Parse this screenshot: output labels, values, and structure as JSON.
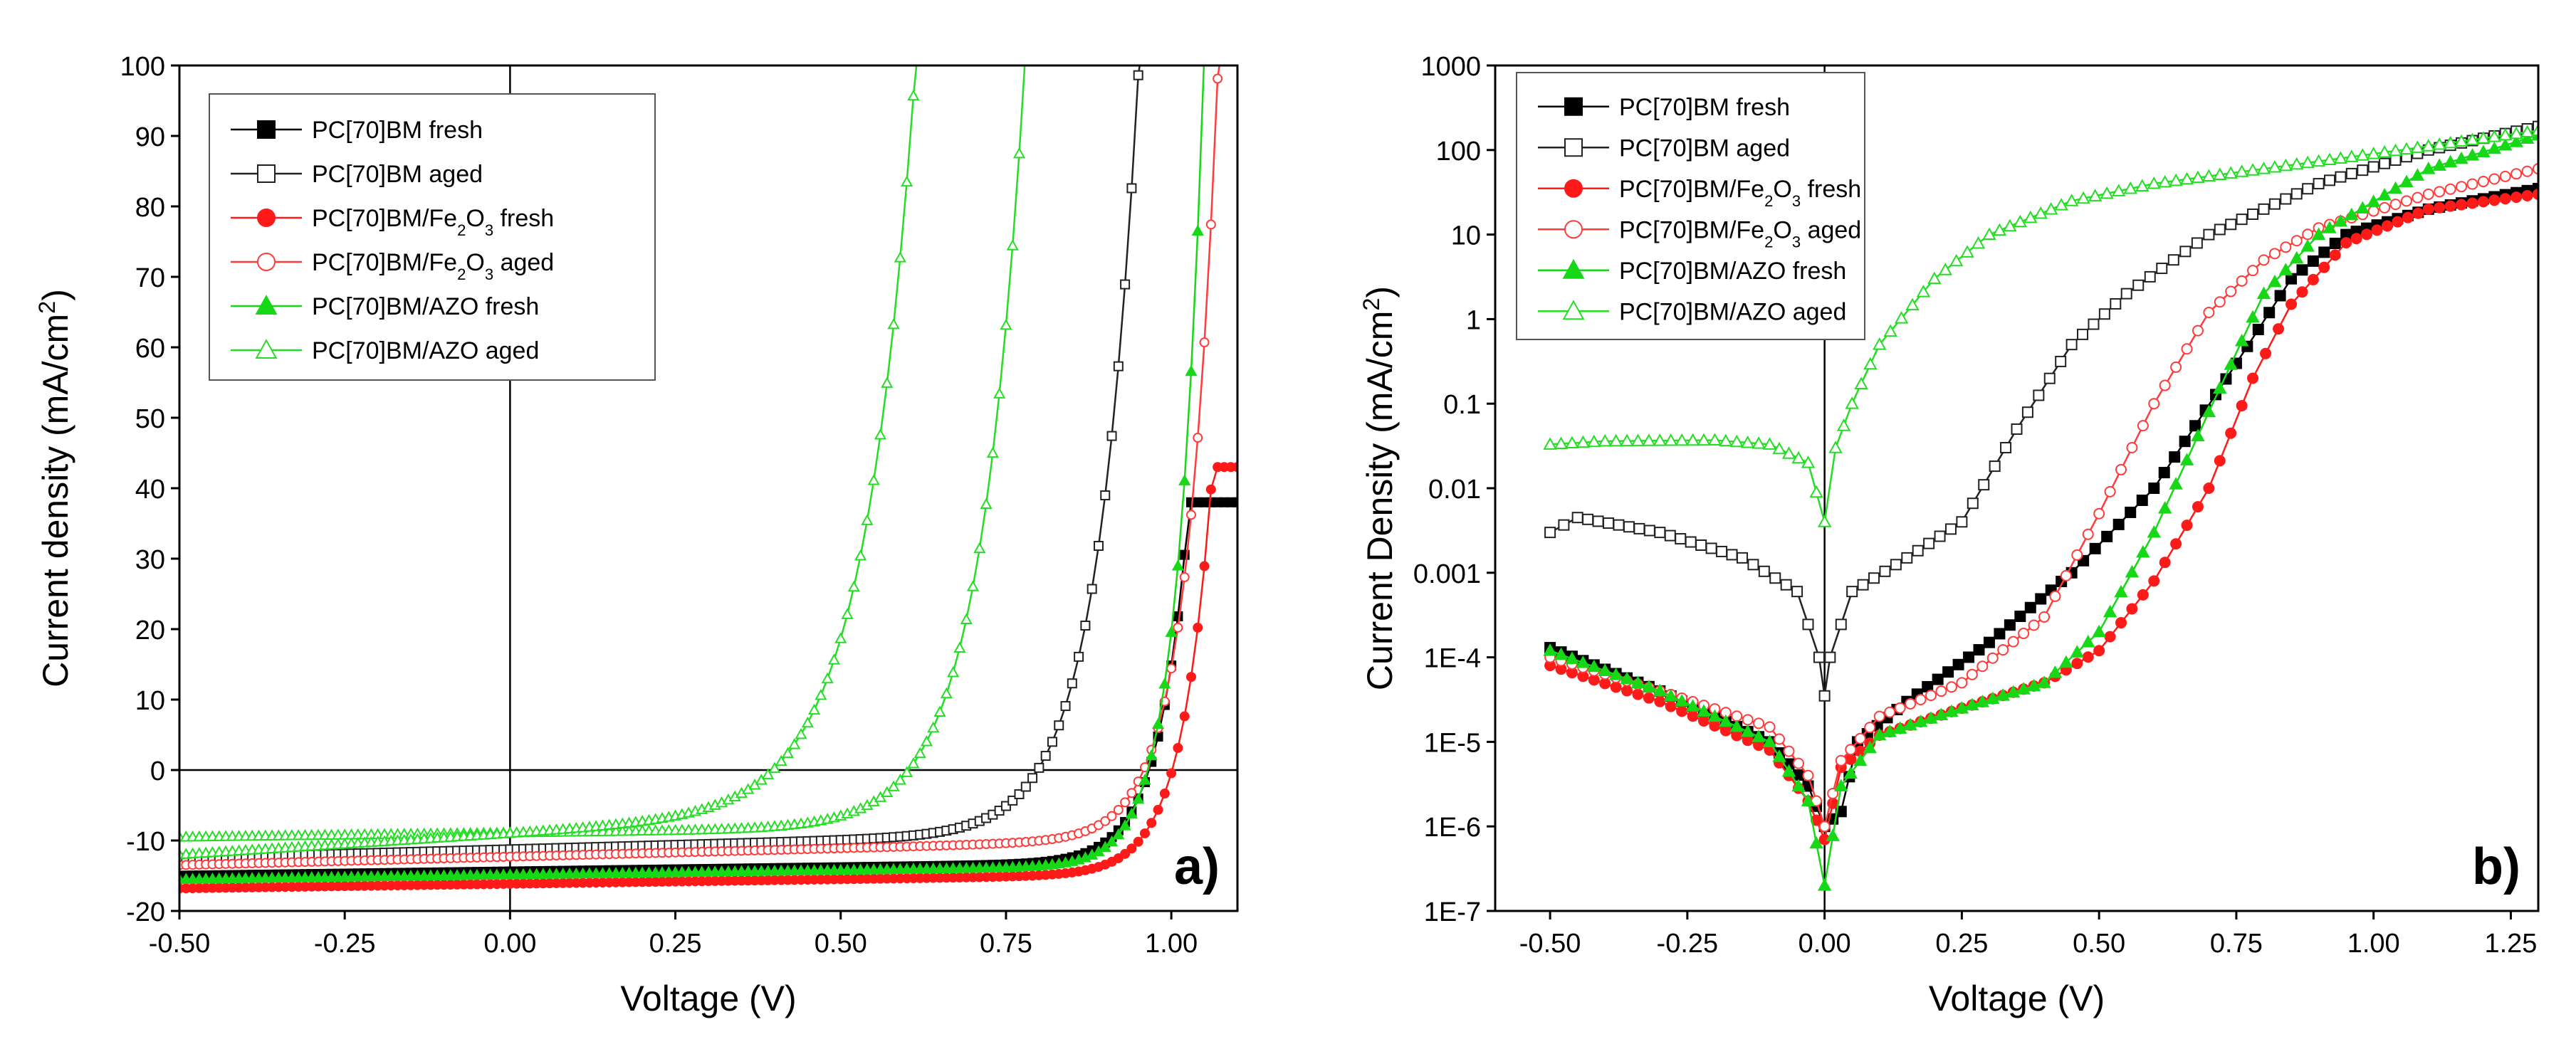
{
  "chart_data": [
    {
      "type": "line",
      "panel_label": "a)",
      "title": "",
      "xlabel": "Voltage (V)",
      "ylabel": "Current density (mA/cm²)",
      "ylabel_parts": [
        "Current density (mA/cm",
        "2",
        ")"
      ],
      "xlim": [
        -0.5,
        1.1
      ],
      "ylim": [
        -20,
        100
      ],
      "yscale": "linear",
      "xticks": [
        -0.5,
        -0.25,
        0.0,
        0.25,
        0.5,
        0.75,
        1.0
      ],
      "xtick_labels": [
        "-0.50",
        "-0.25",
        "0.00",
        "0.25",
        "0.50",
        "0.75",
        "1.00"
      ],
      "yticks": [
        -20,
        -10,
        0,
        10,
        20,
        30,
        40,
        50,
        60,
        70,
        80,
        90,
        100
      ],
      "ytick_labels": [
        "-20",
        "-10",
        "0",
        "10",
        "20",
        "30",
        "40",
        "50",
        "60",
        "70",
        "80",
        "90",
        "100"
      ],
      "legend_position": "top-left",
      "series": [
        {
          "name": "PC[70]BM fresh",
          "legend_parts": [
            [
              "PC[70]BM fresh",
              ""
            ]
          ],
          "color": "#000000",
          "marker": "square",
          "filled": true,
          "model": {
            "kind": "jv",
            "jsc": -15,
            "slope": 1.2,
            "voc": 0.85,
            "a": 0.045,
            "jmax": 38
          }
        },
        {
          "name": "PC[70]BM aged",
          "legend_parts": [
            [
              "PC[70]BM aged",
              ""
            ]
          ],
          "color": "#222222",
          "marker": "square",
          "filled": false,
          "model": {
            "kind": "jv",
            "jsc": -12.5,
            "slope": 2.5,
            "voc": 0.66,
            "a": 0.062,
            "jmax": 100
          }
        },
        {
          "name": "PC[70]BM/Fe2O3 fresh",
          "legend_parts": [
            [
              "PC[70]BM/Fe",
              ""
            ],
            [
              "2",
              "sub"
            ],
            [
              "O",
              ""
            ],
            [
              "3",
              "sub"
            ],
            [
              " fresh",
              ""
            ]
          ],
          "color": "#ff1a1a",
          "marker": "circle",
          "filled": true,
          "model": {
            "kind": "jv",
            "jsc": -16.8,
            "slope": 1.3,
            "voc": 0.88,
            "a": 0.045,
            "jmax": 43
          }
        },
        {
          "name": "PC[70]BM/Fe2O3 aged",
          "legend_parts": [
            [
              "PC[70]BM/Fe",
              ""
            ],
            [
              "2",
              "sub"
            ],
            [
              "O",
              ""
            ],
            [
              "3",
              "sub"
            ],
            [
              " aged",
              ""
            ]
          ],
          "color": "#ff3b3b",
          "marker": "circle",
          "filled": false,
          "model": {
            "kind": "jv",
            "jsc": -13.5,
            "slope": 2.4,
            "voc": 0.85,
            "a": 0.047,
            "jmax": 100
          }
        },
        {
          "name": "PC[70]BM/AZO fresh",
          "legend_parts": [
            [
              "PC[70]BM/AZO fresh",
              ""
            ]
          ],
          "color": "#16d816",
          "marker": "triangle",
          "filled": true,
          "model": {
            "kind": "jv",
            "jsc": -15.5,
            "slope": 1.3,
            "voc": 0.86,
            "a": 0.04,
            "jmax": 100
          }
        },
        {
          "name": "PC[70]BM/AZO aged",
          "legend_parts": [
            [
              "PC[70]BM/AZO aged",
              ""
            ]
          ],
          "color": "#25dd25",
          "marker": "triangle",
          "filled": false,
          "model": {
            "kind": "jv",
            "jsc": -9.5,
            "slope": 1.2,
            "voc": 0.46,
            "a": 0.068,
            "jmax": 100
          }
        },
        {
          "name": "PC[70]BM/AZO aged (second curve)",
          "legend_parts": [],
          "color": "#25dd25",
          "marker": "triangle",
          "filled": false,
          "model": {
            "kind": "jv",
            "jsc": -12,
            "slope": 6,
            "voc": 0.25,
            "a": 0.078,
            "jmax": 100
          }
        }
      ]
    },
    {
      "type": "line",
      "panel_label": "b)",
      "title": "",
      "xlabel": "Voltage (V)",
      "ylabel": "Current Density (mA/cm²)",
      "ylabel_parts": [
        "Current Density (mA/cm",
        "2",
        ")"
      ],
      "xlim": [
        -0.6,
        1.3
      ],
      "ylim": [
        1e-07,
        1000
      ],
      "yscale": "log",
      "xticks": [
        -0.5,
        -0.25,
        0.0,
        0.25,
        0.5,
        0.75,
        1.0,
        1.25
      ],
      "xtick_labels": [
        "-0.50",
        "-0.25",
        "0.00",
        "0.25",
        "0.50",
        "0.75",
        "1.00",
        "1.25"
      ],
      "yticks": [
        1e-07,
        1e-06,
        1e-05,
        0.0001,
        0.001,
        0.01,
        0.1,
        1,
        10,
        100,
        1000
      ],
      "ytick_labels": [
        "1E-7",
        "1E-6",
        "1E-5",
        "1E-4",
        "0.001",
        "0.01",
        "0.1",
        "1",
        "10",
        "100",
        "1000"
      ],
      "legend_position": "top-left",
      "series": [
        {
          "name": "PC[70]BM fresh",
          "legend_parts": [
            [
              "PC[70]BM fresh",
              ""
            ]
          ],
          "color": "#000000",
          "marker": "square",
          "filled": true,
          "points": [
            [
              -0.5,
              0.00013
            ],
            [
              -0.3,
              4e-05
            ],
            [
              -0.1,
              1e-05
            ],
            [
              -0.03,
              3e-06
            ],
            [
              0,
              1e-06
            ],
            [
              0.03,
              1.5e-06
            ],
            [
              0.06,
              1e-05
            ],
            [
              0.15,
              3e-05
            ],
            [
              0.3,
              0.00015
            ],
            [
              0.45,
              0.001
            ],
            [
              0.6,
              0.01
            ],
            [
              0.75,
              0.3
            ],
            [
              0.85,
              3
            ],
            [
              0.95,
              10
            ],
            [
              1.1,
              20
            ],
            [
              1.3,
              35
            ]
          ]
        },
        {
          "name": "PC[70]BM aged",
          "legend_parts": [
            [
              "PC[70]BM aged",
              ""
            ]
          ],
          "color": "#222222",
          "marker": "square",
          "filled": false,
          "points": [
            [
              -0.5,
              0.003
            ],
            [
              -0.45,
              0.0045
            ],
            [
              -0.3,
              0.003
            ],
            [
              -0.15,
              0.0015
            ],
            [
              -0.05,
              0.0006
            ],
            [
              -0.01,
              0.0001
            ],
            [
              0,
              3.5e-05
            ],
            [
              0.01,
              0.0001
            ],
            [
              0.05,
              0.0006
            ],
            [
              0.15,
              0.0015
            ],
            [
              0.25,
              0.004
            ],
            [
              0.35,
              0.05
            ],
            [
              0.45,
              0.5
            ],
            [
              0.55,
              2
            ],
            [
              0.7,
              10
            ],
            [
              0.9,
              40
            ],
            [
              1.1,
              100
            ],
            [
              1.3,
              190
            ]
          ]
        },
        {
          "name": "PC[70]BM/Fe2O3 fresh",
          "legend_parts": [
            [
              "PC[70]BM/Fe",
              ""
            ],
            [
              "2",
              "sub"
            ],
            [
              "O",
              ""
            ],
            [
              "3",
              "sub"
            ],
            [
              " fresh",
              ""
            ]
          ],
          "color": "#ff1a1a",
          "marker": "circle",
          "filled": true,
          "points": [
            [
              -0.5,
              8e-05
            ],
            [
              -0.3,
              3e-05
            ],
            [
              -0.1,
              8e-06
            ],
            [
              -0.03,
              2e-06
            ],
            [
              0,
              7e-07
            ],
            [
              0.03,
              5e-06
            ],
            [
              0.1,
              1.2e-05
            ],
            [
              0.25,
              2.5e-05
            ],
            [
              0.4,
              5e-05
            ],
            [
              0.5,
              0.00012
            ],
            [
              0.6,
              0.0008
            ],
            [
              0.7,
              0.01
            ],
            [
              0.78,
              0.2
            ],
            [
              0.85,
              1.5
            ],
            [
              0.95,
              8
            ],
            [
              1.1,
              20
            ],
            [
              1.3,
              30
            ]
          ]
        },
        {
          "name": "PC[70]BM/Fe2O3 aged",
          "legend_parts": [
            [
              "PC[70]BM/Fe",
              ""
            ],
            [
              "2",
              "sub"
            ],
            [
              "O",
              ""
            ],
            [
              "3",
              "sub"
            ],
            [
              " aged",
              ""
            ]
          ],
          "color": "#ff3b3b",
          "marker": "circle",
          "filled": false,
          "points": [
            [
              -0.5,
              0.0001
            ],
            [
              -0.3,
              4e-05
            ],
            [
              -0.1,
              1.5e-05
            ],
            [
              -0.03,
              4e-06
            ],
            [
              0,
              1e-06
            ],
            [
              0.03,
              6e-06
            ],
            [
              0.1,
              2e-05
            ],
            [
              0.25,
              5e-05
            ],
            [
              0.4,
              0.0003
            ],
            [
              0.5,
              0.005
            ],
            [
              0.6,
              0.1
            ],
            [
              0.7,
              1.2
            ],
            [
              0.8,
              5
            ],
            [
              0.9,
              12
            ],
            [
              1.1,
              30
            ],
            [
              1.3,
              60
            ]
          ]
        },
        {
          "name": "PC[70]BM/AZO fresh",
          "legend_parts": [
            [
              "PC[70]BM/AZO fresh",
              ""
            ]
          ],
          "color": "#16d816",
          "marker": "triangle",
          "filled": true,
          "points": [
            [
              -0.5,
              0.00012
            ],
            [
              -0.3,
              4e-05
            ],
            [
              -0.1,
              1e-05
            ],
            [
              -0.03,
              2e-06
            ],
            [
              0,
              2e-07
            ],
            [
              0.03,
              3e-06
            ],
            [
              0.1,
              1.2e-05
            ],
            [
              0.25,
              2.5e-05
            ],
            [
              0.4,
              5e-05
            ],
            [
              0.5,
              0.0002
            ],
            [
              0.6,
              0.003
            ],
            [
              0.7,
              0.08
            ],
            [
              0.8,
              2
            ],
            [
              0.9,
              10
            ],
            [
              1.1,
              60
            ],
            [
              1.3,
              150
            ]
          ]
        },
        {
          "name": "PC[70]BM/AZO aged",
          "legend_parts": [
            [
              "PC[70]BM/AZO aged",
              ""
            ]
          ],
          "color": "#25dd25",
          "marker": "triangle",
          "filled": false,
          "points": [
            [
              -0.5,
              0.033
            ],
            [
              -0.4,
              0.036
            ],
            [
              -0.2,
              0.037
            ],
            [
              -0.1,
              0.033
            ],
            [
              -0.03,
              0.02
            ],
            [
              0,
              0.004
            ],
            [
              0.02,
              0.03
            ],
            [
              0.05,
              0.1
            ],
            [
              0.1,
              0.5
            ],
            [
              0.2,
              3
            ],
            [
              0.3,
              10
            ],
            [
              0.45,
              25
            ],
            [
              0.6,
              40
            ],
            [
              0.8,
              60
            ],
            [
              1.0,
              90
            ],
            [
              1.3,
              170
            ]
          ]
        }
      ]
    }
  ]
}
